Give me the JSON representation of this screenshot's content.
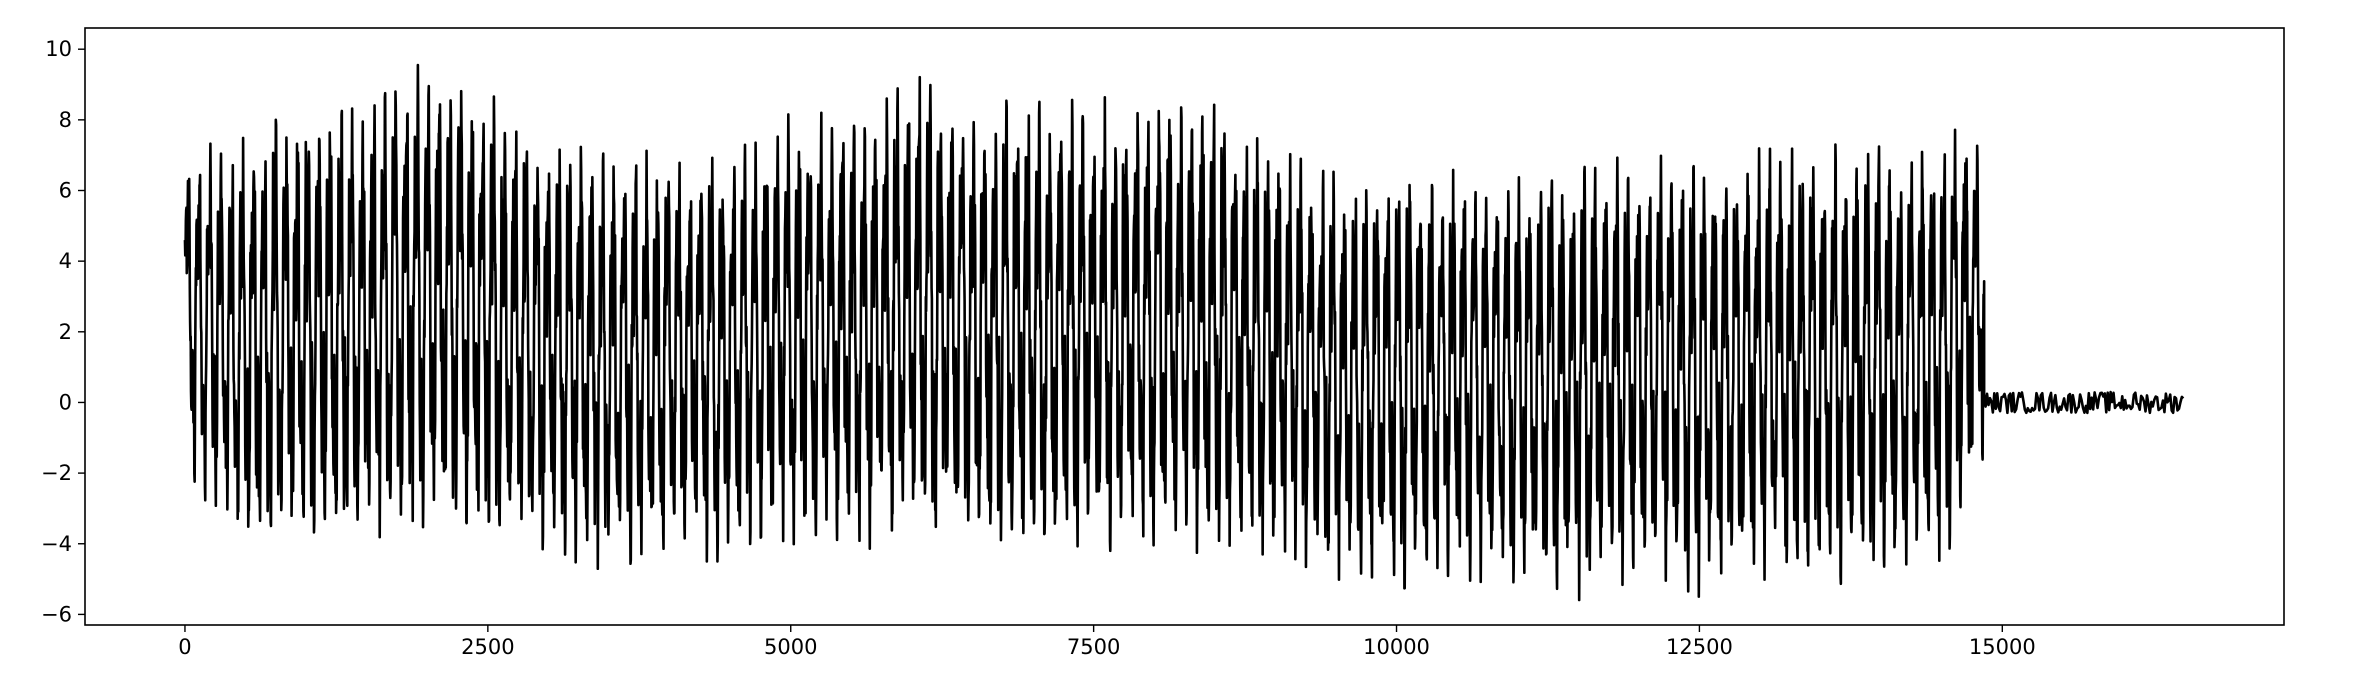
{
  "chart_data": {
    "type": "line",
    "title": "",
    "xlabel": "",
    "ylabel": "",
    "xlim": [
      -825,
      17325
    ],
    "ylim": [
      -6.3,
      10.6
    ],
    "x_ticks": [
      0,
      2500,
      5000,
      7500,
      10000,
      12500,
      15000
    ],
    "x_tick_labels": [
      "0",
      "2500",
      "5000",
      "7500",
      "10000",
      "12500",
      "15000"
    ],
    "y_ticks": [
      -6,
      -4,
      -2,
      0,
      2,
      4,
      6,
      8,
      10
    ],
    "y_tick_labels": [
      "−6",
      "−4",
      "−2",
      "0",
      "2",
      "4",
      "6",
      "8",
      "10"
    ],
    "grid": false,
    "legend": "none",
    "line_color": "#000000",
    "series": [
      {
        "x_range": [
          0,
          16500
        ],
        "signal_end": 14850,
        "oscillation_period_approx": 90,
        "envelope": [
          {
            "x": 0,
            "max": 7.2,
            "min": -2.0
          },
          {
            "x": 500,
            "max": 7.5,
            "min": -4.5
          },
          {
            "x": 1000,
            "max": 8.5,
            "min": -4.0
          },
          {
            "x": 1500,
            "max": 8.3,
            "min": -3.9
          },
          {
            "x": 2000,
            "max": 9.8,
            "min": -3.5
          },
          {
            "x": 2500,
            "max": 8.8,
            "min": -4.2
          },
          {
            "x": 3000,
            "max": 7.5,
            "min": -4.3
          },
          {
            "x": 3500,
            "max": 7.0,
            "min": -4.8
          },
          {
            "x": 4000,
            "max": 7.2,
            "min": -4.5
          },
          {
            "x": 4500,
            "max": 7.0,
            "min": -4.5
          },
          {
            "x": 5000,
            "max": 8.2,
            "min": -4.0
          },
          {
            "x": 5500,
            "max": 8.2,
            "min": -4.2
          },
          {
            "x": 6000,
            "max": 9.3,
            "min": -4.0
          },
          {
            "x": 6500,
            "max": 8.6,
            "min": -4.3
          },
          {
            "x": 7000,
            "max": 8.5,
            "min": -4.5
          },
          {
            "x": 7500,
            "max": 8.6,
            "min": -4.2
          },
          {
            "x": 8000,
            "max": 8.8,
            "min": -4.2
          },
          {
            "x": 8500,
            "max": 8.5,
            "min": -4.3
          },
          {
            "x": 9000,
            "max": 7.2,
            "min": -4.3
          },
          {
            "x": 9500,
            "max": 6.5,
            "min": -5.0
          },
          {
            "x": 10000,
            "max": 6.5,
            "min": -5.3
          },
          {
            "x": 10500,
            "max": 6.8,
            "min": -5.0
          },
          {
            "x": 11000,
            "max": 6.5,
            "min": -5.2
          },
          {
            "x": 11500,
            "max": 6.8,
            "min": -5.6
          },
          {
            "x": 12000,
            "max": 7.0,
            "min": -5.0
          },
          {
            "x": 12500,
            "max": 7.2,
            "min": -5.5
          },
          {
            "x": 13000,
            "max": 7.2,
            "min": -5.0
          },
          {
            "x": 13500,
            "max": 7.3,
            "min": -5.2
          },
          {
            "x": 14000,
            "max": 7.3,
            "min": -5.0
          },
          {
            "x": 14500,
            "max": 7.5,
            "min": -4.8
          },
          {
            "x": 14850,
            "max": 8.2,
            "min": -1.5
          }
        ],
        "tail_level": 0.0,
        "tail_noise": 0.3
      }
    ]
  }
}
